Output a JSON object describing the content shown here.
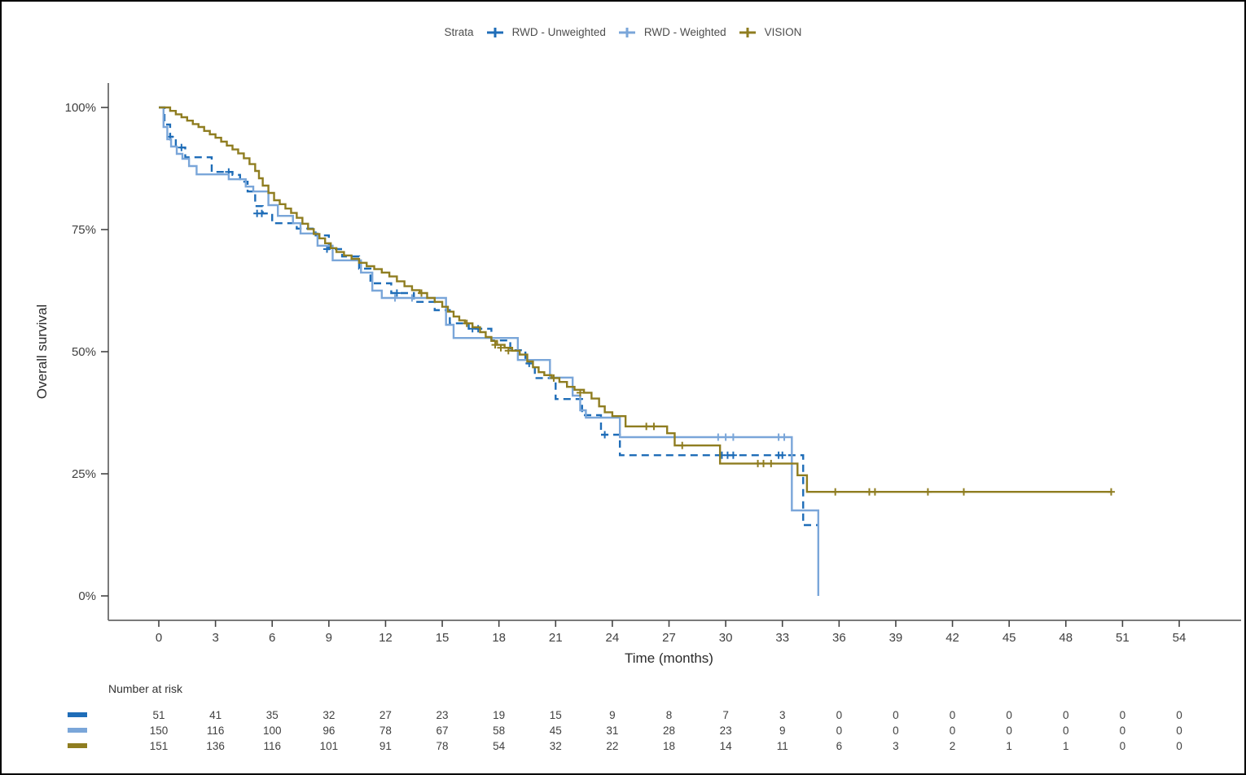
{
  "figure": {
    "background": "#ffffff",
    "border_color": "#000000"
  },
  "legend": {
    "title": "Strata",
    "items": [
      {
        "label": "RWD - Unweighted",
        "color": "#1f6db8",
        "style": "dashed"
      },
      {
        "label": "RWD - Weighted",
        "color": "#7aa6d9",
        "style": "solid"
      },
      {
        "label": "VISION",
        "color": "#8f7d20",
        "style": "solid"
      }
    ]
  },
  "chart_data": {
    "type": "line",
    "subtype": "kaplan-meier-step",
    "title": "",
    "xlabel": "Time (months)",
    "ylabel": "Overall survival",
    "xlim": [
      0,
      54
    ],
    "ylim": [
      0,
      100
    ],
    "grid": false,
    "legend_position": "top",
    "x_ticks": [
      0,
      3,
      6,
      9,
      12,
      15,
      18,
      21,
      24,
      27,
      30,
      33,
      36,
      39,
      42,
      45,
      48,
      51,
      54
    ],
    "y_tick_values": [
      0,
      25,
      50,
      75,
      100
    ],
    "y_tick_labels": [
      "0%",
      "25%",
      "50%",
      "75%",
      "100%"
    ],
    "axis_color": "#7a7a7a",
    "text_color": "#4d4d4d",
    "series": [
      {
        "name": "RWD - Unweighted",
        "color": "#1f6db8",
        "style": "dashed",
        "points": [
          [
            0,
            100
          ],
          [
            0.3,
            96.5
          ],
          [
            0.6,
            94
          ],
          [
            0.9,
            91.8
          ],
          [
            1.4,
            89.8
          ],
          [
            2.8,
            86.8
          ],
          [
            3.9,
            86.2
          ],
          [
            4.3,
            84.8
          ],
          [
            4.7,
            82.8
          ],
          [
            5.1,
            79.8
          ],
          [
            5.5,
            78.3
          ],
          [
            6.0,
            76.3
          ],
          [
            7.3,
            75.2
          ],
          [
            8.3,
            73.8
          ],
          [
            9.0,
            71.0
          ],
          [
            9.7,
            69.5
          ],
          [
            10.6,
            67.0
          ],
          [
            11.2,
            64.0
          ],
          [
            12.3,
            62.0
          ],
          [
            13.5,
            60.2
          ],
          [
            14.6,
            58.5
          ],
          [
            15.4,
            55.8
          ],
          [
            16.4,
            54.7
          ],
          [
            17.6,
            52.3
          ],
          [
            18.6,
            50.3
          ],
          [
            19.4,
            47.6
          ],
          [
            19.9,
            44.6
          ],
          [
            21.0,
            40.3
          ],
          [
            22.4,
            37.0
          ],
          [
            23.4,
            33.0
          ],
          [
            24.4,
            28.8
          ],
          [
            34.1,
            14.5
          ]
        ],
        "end_time": 34.9,
        "censors": [
          [
            0.6,
            94
          ],
          [
            1.2,
            91.8
          ],
          [
            3.7,
            86.8
          ],
          [
            5.2,
            78.3
          ],
          [
            5.45,
            78.3
          ],
          [
            8.9,
            71.0
          ],
          [
            12.6,
            62.0
          ],
          [
            16.6,
            54.7
          ],
          [
            16.9,
            54.7
          ],
          [
            19.6,
            47.6
          ],
          [
            23.6,
            33.0
          ],
          [
            29.8,
            28.8
          ],
          [
            30.1,
            28.8
          ],
          [
            30.4,
            28.8
          ],
          [
            32.8,
            28.8
          ],
          [
            33.0,
            28.8
          ]
        ]
      },
      {
        "name": "RWD - Weighted",
        "color": "#7aa6d9",
        "style": "solid",
        "points": [
          [
            0,
            100
          ],
          [
            0.25,
            96
          ],
          [
            0.45,
            93.5
          ],
          [
            0.65,
            92
          ],
          [
            0.95,
            90.5
          ],
          [
            1.25,
            89.5
          ],
          [
            1.6,
            88
          ],
          [
            2.0,
            86.3
          ],
          [
            3.7,
            85.3
          ],
          [
            4.6,
            83.8
          ],
          [
            5.0,
            82.8
          ],
          [
            5.8,
            80.0
          ],
          [
            6.3,
            77.8
          ],
          [
            7.1,
            76.3
          ],
          [
            7.5,
            74.2
          ],
          [
            8.4,
            71.7
          ],
          [
            9.2,
            68.7
          ],
          [
            10.7,
            66.2
          ],
          [
            11.3,
            62.5
          ],
          [
            11.8,
            61.0
          ],
          [
            15.2,
            55.5
          ],
          [
            15.6,
            52.8
          ],
          [
            19.0,
            48.3
          ],
          [
            20.7,
            44.7
          ],
          [
            21.9,
            41.0
          ],
          [
            22.3,
            38.0
          ],
          [
            22.6,
            36.5
          ],
          [
            24.4,
            32.5
          ],
          [
            33.5,
            17.5
          ],
          [
            34.9,
            0
          ]
        ],
        "end_time": 34.9,
        "censors": [
          [
            12.5,
            61.0
          ],
          [
            13.4,
            61.0
          ],
          [
            29.6,
            32.5
          ],
          [
            30.0,
            32.5
          ],
          [
            30.4,
            32.5
          ],
          [
            32.8,
            32.5
          ],
          [
            33.1,
            32.5
          ]
        ]
      },
      {
        "name": "VISION",
        "color": "#8f7d20",
        "style": "solid",
        "points": [
          [
            0,
            100
          ],
          [
            0.6,
            99.3
          ],
          [
            0.9,
            98.6
          ],
          [
            1.2,
            98.0
          ],
          [
            1.5,
            97.3
          ],
          [
            1.8,
            96.6
          ],
          [
            2.1,
            96.0
          ],
          [
            2.4,
            95.2
          ],
          [
            2.7,
            94.5
          ],
          [
            3.0,
            93.8
          ],
          [
            3.3,
            93.0
          ],
          [
            3.6,
            92.2
          ],
          [
            3.9,
            91.4
          ],
          [
            4.2,
            90.6
          ],
          [
            4.5,
            89.6
          ],
          [
            4.8,
            88.4
          ],
          [
            5.1,
            87.0
          ],
          [
            5.3,
            85.5
          ],
          [
            5.5,
            84.0
          ],
          [
            5.8,
            82.5
          ],
          [
            6.1,
            81.0
          ],
          [
            6.4,
            80.2
          ],
          [
            6.7,
            79.3
          ],
          [
            7.0,
            78.4
          ],
          [
            7.3,
            77.4
          ],
          [
            7.6,
            76.2
          ],
          [
            7.9,
            75.1
          ],
          [
            8.2,
            74.1
          ],
          [
            8.5,
            73.2
          ],
          [
            8.8,
            72.2
          ],
          [
            9.1,
            71.2
          ],
          [
            9.4,
            70.4
          ],
          [
            9.8,
            69.7
          ],
          [
            10.2,
            69.0
          ],
          [
            10.6,
            68.2
          ],
          [
            11.0,
            67.5
          ],
          [
            11.4,
            66.9
          ],
          [
            11.8,
            66.2
          ],
          [
            12.2,
            65.4
          ],
          [
            12.6,
            64.4
          ],
          [
            13.0,
            63.4
          ],
          [
            13.4,
            62.6
          ],
          [
            13.8,
            62.0
          ],
          [
            14.2,
            61.0
          ],
          [
            14.6,
            60.2
          ],
          [
            15.0,
            59.2
          ],
          [
            15.3,
            58.2
          ],
          [
            15.6,
            57.2
          ],
          [
            15.9,
            56.4
          ],
          [
            16.2,
            55.8
          ],
          [
            16.6,
            55.0
          ],
          [
            17.0,
            54.0
          ],
          [
            17.3,
            53.0
          ],
          [
            17.6,
            52.2
          ],
          [
            17.9,
            51.4
          ],
          [
            18.3,
            50.8
          ],
          [
            18.7,
            50.2
          ],
          [
            19.1,
            49.4
          ],
          [
            19.5,
            48.0
          ],
          [
            19.8,
            46.8
          ],
          [
            20.1,
            45.8
          ],
          [
            20.4,
            45.2
          ],
          [
            20.8,
            44.6
          ],
          [
            21.2,
            43.8
          ],
          [
            21.6,
            42.8
          ],
          [
            22.0,
            42.2
          ],
          [
            22.5,
            41.6
          ],
          [
            22.9,
            40.4
          ],
          [
            23.3,
            38.8
          ],
          [
            23.6,
            37.6
          ],
          [
            24.0,
            36.8
          ],
          [
            24.7,
            34.7
          ],
          [
            26.9,
            33.3
          ],
          [
            27.3,
            30.8
          ],
          [
            29.7,
            27.1
          ],
          [
            33.8,
            24.7
          ],
          [
            34.3,
            21.3
          ]
        ],
        "end_time": 50.4,
        "censors": [
          [
            13.9,
            62.0
          ],
          [
            16.3,
            55.8
          ],
          [
            17.8,
            51.4
          ],
          [
            18.1,
            50.8
          ],
          [
            18.5,
            50.2
          ],
          [
            20.9,
            44.6
          ],
          [
            22.3,
            41.6
          ],
          [
            25.8,
            34.7
          ],
          [
            26.2,
            34.7
          ],
          [
            27.7,
            30.8
          ],
          [
            31.7,
            27.1
          ],
          [
            32.0,
            27.1
          ],
          [
            32.4,
            27.1
          ],
          [
            35.8,
            21.3
          ],
          [
            37.6,
            21.3
          ],
          [
            37.9,
            21.3
          ],
          [
            40.7,
            21.3
          ],
          [
            42.6,
            21.3
          ],
          [
            50.4,
            21.3
          ]
        ]
      }
    ],
    "number_at_risk": {
      "label": "Number at risk",
      "times": [
        0,
        3,
        6,
        9,
        12,
        15,
        18,
        21,
        24,
        27,
        30,
        33,
        36,
        39,
        42,
        45,
        48,
        51,
        54
      ],
      "rows": [
        {
          "name": "RWD - Unweighted",
          "color": "#1f6db8",
          "values": [
            51,
            41,
            35,
            32,
            27,
            23,
            19,
            15,
            9,
            8,
            7,
            3,
            0,
            0,
            0,
            0,
            0,
            0,
            0
          ]
        },
        {
          "name": "RWD - Weighted",
          "color": "#7aa6d9",
          "values": [
            150,
            116,
            100,
            96,
            78,
            67,
            58,
            45,
            31,
            28,
            23,
            9,
            0,
            0,
            0,
            0,
            0,
            0,
            0
          ]
        },
        {
          "name": "VISION",
          "color": "#8f7d20",
          "values": [
            151,
            136,
            116,
            101,
            91,
            78,
            54,
            32,
            22,
            18,
            14,
            11,
            6,
            3,
            2,
            1,
            1,
            0,
            0
          ]
        }
      ]
    }
  }
}
